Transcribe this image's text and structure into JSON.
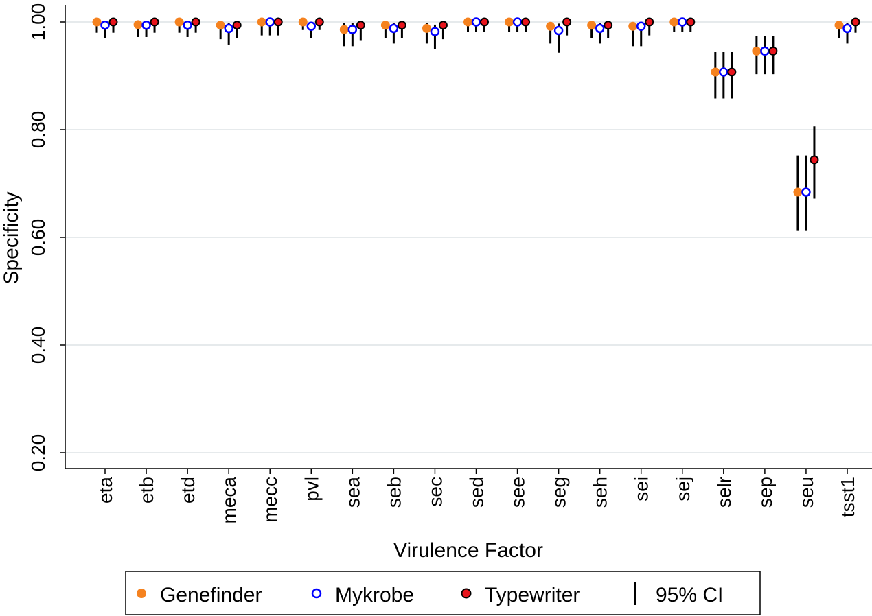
{
  "chart_data": {
    "type": "scatter",
    "xlabel": "Virulence Factor",
    "ylabel": "Specificity",
    "ylim": [
      0.18,
      1.03
    ],
    "yticks": [
      0.2,
      0.4,
      0.6,
      0.8,
      1.0
    ],
    "ytick_labels": [
      "0.20",
      "0.40",
      "0.60",
      "0.80",
      "1.00"
    ],
    "grid": true,
    "categories": [
      "eta",
      "etb",
      "etd",
      "meca",
      "mecc",
      "pvl",
      "sea",
      "seb",
      "sec",
      "sed",
      "see",
      "seg",
      "seh",
      "sei",
      "sej",
      "selr",
      "sep",
      "seu",
      "tsst1"
    ],
    "series": [
      {
        "name": "Genefinder",
        "color": "#f5821f",
        "marker": "filled-circle",
        "values": [
          1.0,
          0.995,
          1.0,
          0.994,
          1.0,
          1.0,
          0.986,
          0.994,
          0.988,
          1.0,
          1.0,
          0.992,
          0.994,
          0.992,
          1.0,
          0.907,
          0.946,
          0.684,
          0.994
        ],
        "ci_low": [
          0.98,
          0.972,
          0.98,
          0.968,
          0.975,
          0.985,
          0.955,
          0.97,
          0.96,
          0.982,
          0.982,
          0.96,
          0.97,
          0.955,
          0.982,
          0.858,
          0.903,
          0.612,
          0.97
        ],
        "ci_high": [
          1.0,
          1.0,
          1.0,
          1.0,
          1.0,
          1.0,
          0.998,
          1.0,
          0.998,
          1.0,
          1.0,
          1.0,
          1.0,
          0.999,
          1.0,
          0.944,
          0.974,
          0.752,
          1.0
        ]
      },
      {
        "name": "Mykrobe",
        "color": "#0000ff",
        "marker": "open-circle",
        "values": [
          0.994,
          0.994,
          0.994,
          0.988,
          1.0,
          0.992,
          0.986,
          0.988,
          0.982,
          1.0,
          1.0,
          0.984,
          0.988,
          0.992,
          1.0,
          0.907,
          0.946,
          0.684,
          0.988
        ],
        "ci_low": [
          0.97,
          0.972,
          0.972,
          0.958,
          0.975,
          0.97,
          0.955,
          0.96,
          0.95,
          0.982,
          0.982,
          0.943,
          0.96,
          0.955,
          0.982,
          0.858,
          0.903,
          0.612,
          0.96
        ],
        "ci_high": [
          1.0,
          1.0,
          1.0,
          0.998,
          1.0,
          1.0,
          0.998,
          0.998,
          0.995,
          1.0,
          1.0,
          0.997,
          0.998,
          0.999,
          1.0,
          0.944,
          0.974,
          0.752,
          0.998
        ]
      },
      {
        "name": "Typewriter",
        "color": "#e8141c",
        "marker": "filled-circle-black-edge",
        "values": [
          1.0,
          1.0,
          1.0,
          0.994,
          1.0,
          1.0,
          0.994,
          0.994,
          0.994,
          1.0,
          1.0,
          1.0,
          0.994,
          1.0,
          1.0,
          0.907,
          0.946,
          0.744,
          1.0
        ],
        "ci_low": [
          0.98,
          0.98,
          0.98,
          0.97,
          0.975,
          0.985,
          0.965,
          0.97,
          0.968,
          0.982,
          0.982,
          0.975,
          0.97,
          0.975,
          0.982,
          0.858,
          0.903,
          0.672,
          0.98
        ],
        "ci_high": [
          1.0,
          1.0,
          1.0,
          1.0,
          1.0,
          1.0,
          1.0,
          1.0,
          1.0,
          1.0,
          1.0,
          1.0,
          1.0,
          1.0,
          1.0,
          0.944,
          0.974,
          0.806,
          1.0
        ]
      }
    ],
    "legend": {
      "position": "bottom",
      "entries": [
        "Genefinder",
        "Mykrobe",
        "Typewriter",
        "95% CI"
      ]
    }
  }
}
